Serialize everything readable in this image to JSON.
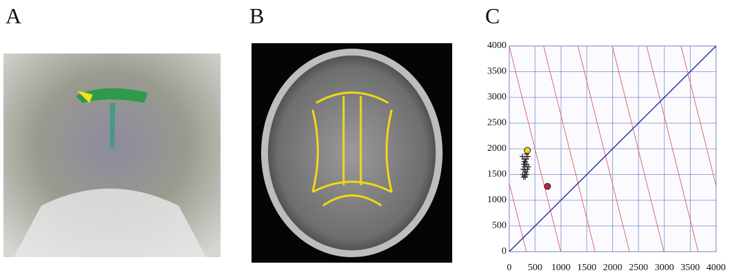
{
  "panels": [
    {
      "label": "A"
    },
    {
      "label": "B"
    },
    {
      "label": "C"
    }
  ],
  "chart_data": {
    "type": "scatter",
    "xlim": [
      0,
      4000
    ],
    "ylim": [
      0,
      4000
    ],
    "xticks": [
      0,
      500,
      1000,
      1500,
      2000,
      2500,
      3000,
      3500,
      4000
    ],
    "yticks": [
      0,
      500,
      1000,
      1500,
      2000,
      2500,
      3000,
      3500,
      4000
    ],
    "grid": true,
    "series": [
      {
        "marker": "cross",
        "color": "#222222",
        "x": [
          255,
          290,
          310,
          330,
          280,
          300,
          340,
          360,
          270,
          320,
          300,
          350,
          310,
          260,
          330,
          290,
          370,
          280,
          340,
          310,
          300
        ],
        "values": [
          1850,
          1800,
          1750,
          1900,
          1700,
          1650,
          1700,
          1850,
          1600,
          1550,
          1500,
          1600,
          1450,
          1500,
          1800,
          1750,
          1650,
          1450,
          1500,
          1700,
          1600
        ]
      },
      {
        "marker": "circle",
        "color": "#f2d21a",
        "x": [
          350
        ],
        "values": [
          1970
        ]
      },
      {
        "marker": "circle",
        "color": "#c0263a",
        "x": [
          740
        ],
        "values": [
          1270
        ]
      }
    ]
  }
}
